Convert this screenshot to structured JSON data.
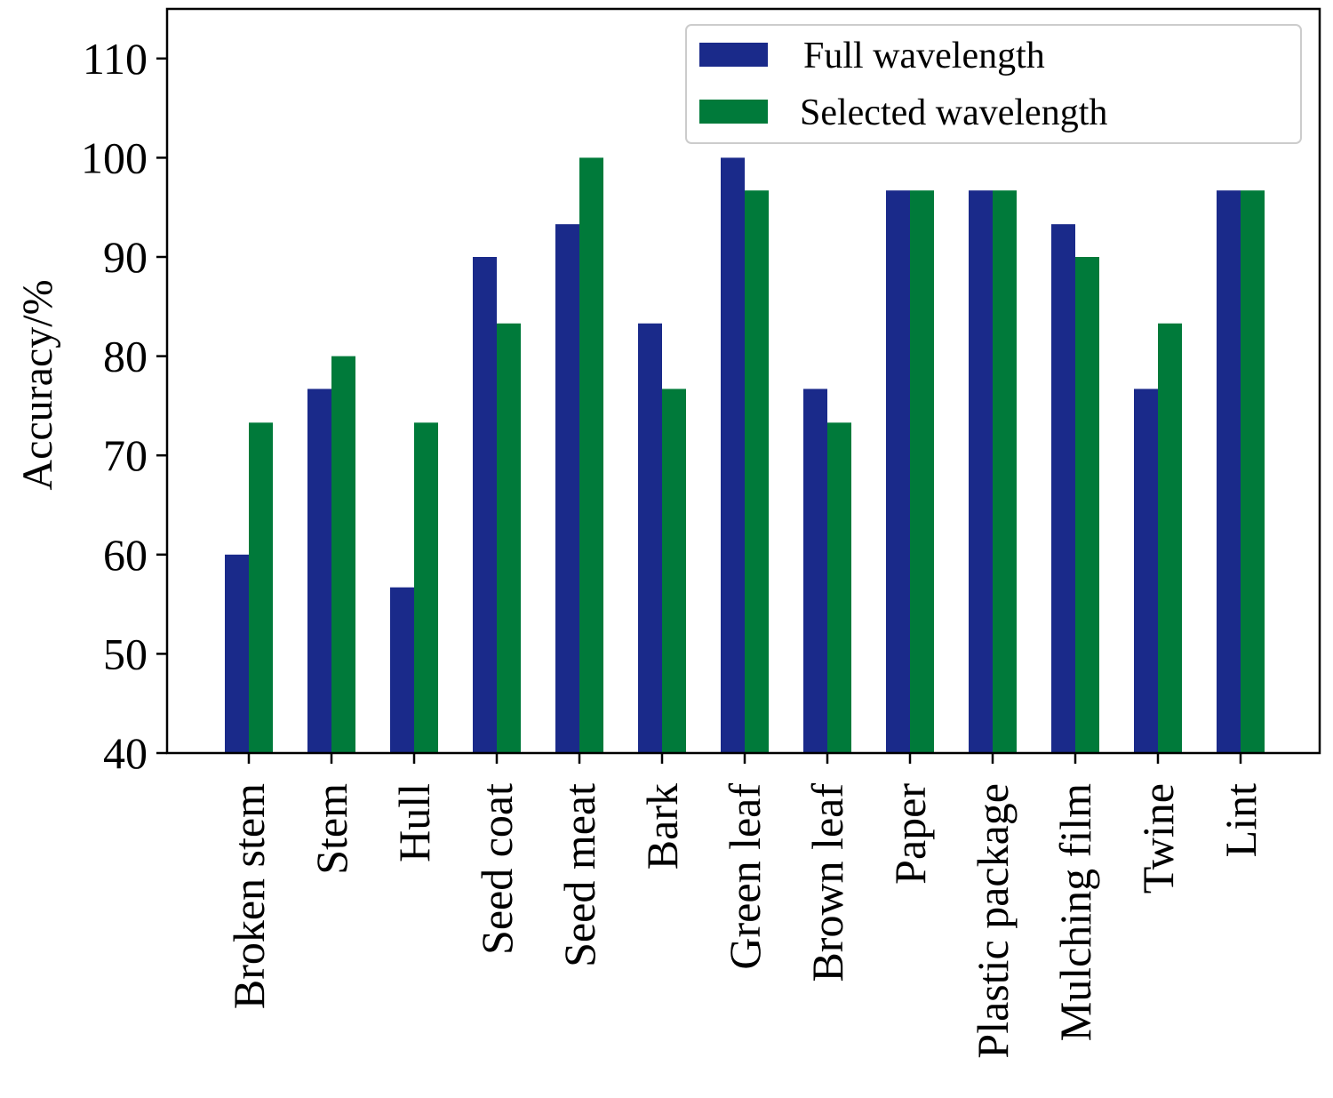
{
  "chart_data": {
    "type": "bar",
    "title": "",
    "xlabel": "",
    "ylabel": "Accuracy/%",
    "ylim": [
      40,
      115
    ],
    "yticks": [
      40,
      50,
      60,
      70,
      80,
      90,
      100,
      110
    ],
    "grid": false,
    "legend_position": "top-right",
    "categories": [
      "Broken stem",
      "Stem",
      "Hull",
      "Seed coat",
      "Seed meat",
      "Bark",
      "Green leaf",
      "Brown leaf",
      "Paper",
      "Plastic package",
      "Mulching film",
      "Twine",
      "Lint"
    ],
    "series": [
      {
        "name": "Full wavelength",
        "color": "#1a2a8a",
        "values": [
          60.0,
          76.7,
          56.7,
          90.0,
          93.3,
          83.3,
          100.0,
          76.7,
          96.7,
          96.7,
          93.3,
          76.7,
          96.7
        ]
      },
      {
        "name": "Selected wavelength",
        "color": "#007a3a",
        "values": [
          73.3,
          80.0,
          73.3,
          83.3,
          100.0,
          76.7,
          96.7,
          73.3,
          96.7,
          96.7,
          90.0,
          83.3,
          96.7
        ]
      }
    ]
  }
}
